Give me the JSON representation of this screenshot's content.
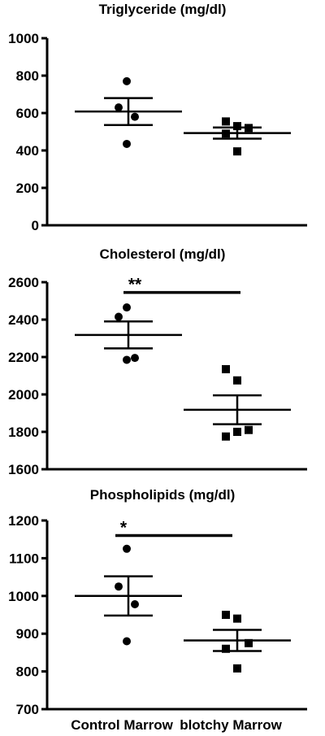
{
  "chart_data": [
    {
      "type": "scatter",
      "title": "Triglyceride (mg/dl)",
      "categories": [
        "Control Marrow",
        "blotchy Marrow"
      ],
      "ylim": [
        0,
        1000
      ],
      "yticks": [
        0,
        200,
        400,
        600,
        800,
        1000
      ],
      "yticks_labels": [
        "0",
        "200",
        "400",
        "600",
        "800",
        "1000"
      ],
      "series": [
        {
          "marker": "circle",
          "values": [
            770,
            630,
            580,
            435
          ],
          "mean": 608,
          "sem": 72
        },
        {
          "marker": "square",
          "values": [
            555,
            530,
            520,
            490,
            395
          ],
          "mean": 493,
          "sem": 30
        }
      ],
      "significance": []
    },
    {
      "type": "scatter",
      "title": "Cholesterol (mg/dl)",
      "categories": [
        "Control Marrow",
        "blotchy Marrow"
      ],
      "ylim": [
        1600,
        2600
      ],
      "yticks": [
        1600,
        1800,
        2000,
        2200,
        2400,
        2600
      ],
      "yticks_labels": [
        "1600",
        "1800",
        "2000",
        "2200",
        "2400",
        "2600"
      ],
      "series": [
        {
          "marker": "circle",
          "values": [
            2465,
            2415,
            2195,
            2185
          ],
          "mean": 2318,
          "sem": 72
        },
        {
          "marker": "square",
          "values": [
            2135,
            2075,
            1810,
            1775,
            1800
          ],
          "mean": 1918,
          "sem": 77
        }
      ],
      "significance": [
        {
          "label": "**",
          "y": 2545
        }
      ]
    },
    {
      "type": "scatter",
      "title": "Phospholipids (mg/dl)",
      "categories": [
        "Control Marrow",
        "blotchy Marrow"
      ],
      "ylim": [
        700,
        1200
      ],
      "yticks": [
        700,
        800,
        900,
        1000,
        1100,
        1200
      ],
      "yticks_labels": [
        "700",
        "800",
        "900",
        "1000",
        "1100",
        "1200"
      ],
      "series": [
        {
          "marker": "circle",
          "values": [
            1125,
            1025,
            978,
            880
          ],
          "mean": 1000,
          "sem": 52
        },
        {
          "marker": "square",
          "values": [
            950,
            940,
            875,
            860,
            808
          ],
          "mean": 882,
          "sem": 28
        }
      ],
      "significance": [
        {
          "label": "*",
          "y": 1160
        }
      ]
    }
  ]
}
